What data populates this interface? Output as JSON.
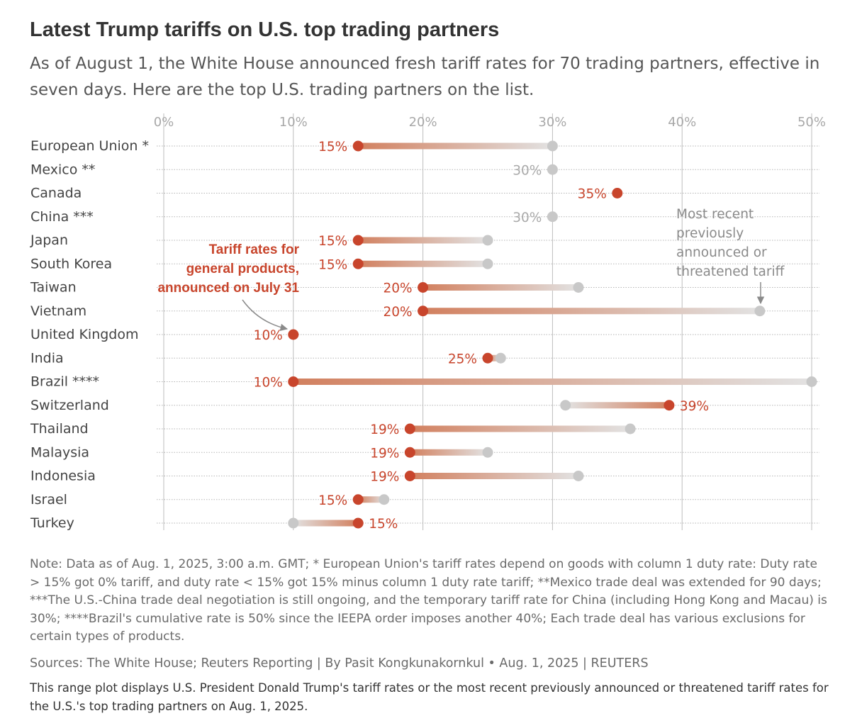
{
  "title": "Latest Trump tariffs on U.S. top trading partners",
  "subtitle": "As of August 1, the White House announced fresh tariff rates for 70 trading partners, effective in seven days. Here are the top U.S. trading partners on the list.",
  "notes": "Note: Data as of Aug. 1, 2025, 3:00 a.m. GMT; * European Union's tariff rates depend on goods with column 1 duty rate: Duty rate > 15% got 0% tariff, and duty rate < 15% got 15% minus column 1 duty rate tariff; **Mexico trade deal was extended for 90 days; ***The U.S.-China trade deal negotiation is still ongoing, and the temporary tariff rate for China (including Hong Kong and Macau) is 30%; ****Brazil's cumulative rate is 50% since the IEEPA order imposes another 40%; Each trade deal has various exclusions for certain types of products.",
  "sources": "Sources: The White House; Reuters Reporting | By Pasit Kongkunakornkul • Aug. 1, 2025 | REUTERS",
  "description": "This range plot displays U.S. President Donald Trump's tariff rates or the most recent previously announced or threatened tariff rates for the U.S.'s top trading partners on Aug. 1, 2025.",
  "colors": {
    "new": "#c8452c",
    "previous": "#c8c8c8",
    "grid": "#bdbdbd",
    "dots": "#b5b5b5"
  },
  "chart_data": {
    "type": "range-dot",
    "x_ticks": [
      "0%",
      "10%",
      "20%",
      "30%",
      "40%",
      "50%"
    ],
    "xlim": [
      0,
      50
    ],
    "grid": true,
    "annotations": {
      "new_rate": [
        "Tariff rates for",
        "general products,",
        "announced on July 31"
      ],
      "previous": [
        "Most recent",
        "previously",
        "announced or",
        "threatened tariff"
      ]
    },
    "rows": [
      {
        "partner": "European Union *",
        "new": 15,
        "previous": 30,
        "label": "15%"
      },
      {
        "partner": "Mexico **",
        "new": null,
        "previous": 30,
        "label": "30%"
      },
      {
        "partner": "Canada",
        "new": 35,
        "previous": null,
        "label": "35%"
      },
      {
        "partner": "China ***",
        "new": null,
        "previous": 30,
        "label": "30%"
      },
      {
        "partner": "Japan",
        "new": 15,
        "previous": 25,
        "label": "15%"
      },
      {
        "partner": "South Korea",
        "new": 15,
        "previous": 25,
        "label": "15%"
      },
      {
        "partner": "Taiwan",
        "new": 20,
        "previous": 32,
        "label": "20%"
      },
      {
        "partner": "Vietnam",
        "new": 20,
        "previous": 46,
        "label": "20%"
      },
      {
        "partner": "United Kingdom",
        "new": 10,
        "previous": null,
        "label": "10%"
      },
      {
        "partner": "India",
        "new": 25,
        "previous": 26,
        "label": "25%"
      },
      {
        "partner": "Brazil ****",
        "new": 10,
        "previous": 50,
        "label": "10%"
      },
      {
        "partner": "Switzerland",
        "new": 39,
        "previous": 31,
        "label": "39%"
      },
      {
        "partner": "Thailand",
        "new": 19,
        "previous": 36,
        "label": "19%"
      },
      {
        "partner": "Malaysia",
        "new": 19,
        "previous": 25,
        "label": "19%"
      },
      {
        "partner": "Indonesia",
        "new": 19,
        "previous": 32,
        "label": "19%"
      },
      {
        "partner": "Israel",
        "new": 15,
        "previous": 17,
        "label": "15%"
      },
      {
        "partner": "Turkey",
        "new": 15,
        "previous": 10,
        "label": "15%"
      }
    ]
  }
}
